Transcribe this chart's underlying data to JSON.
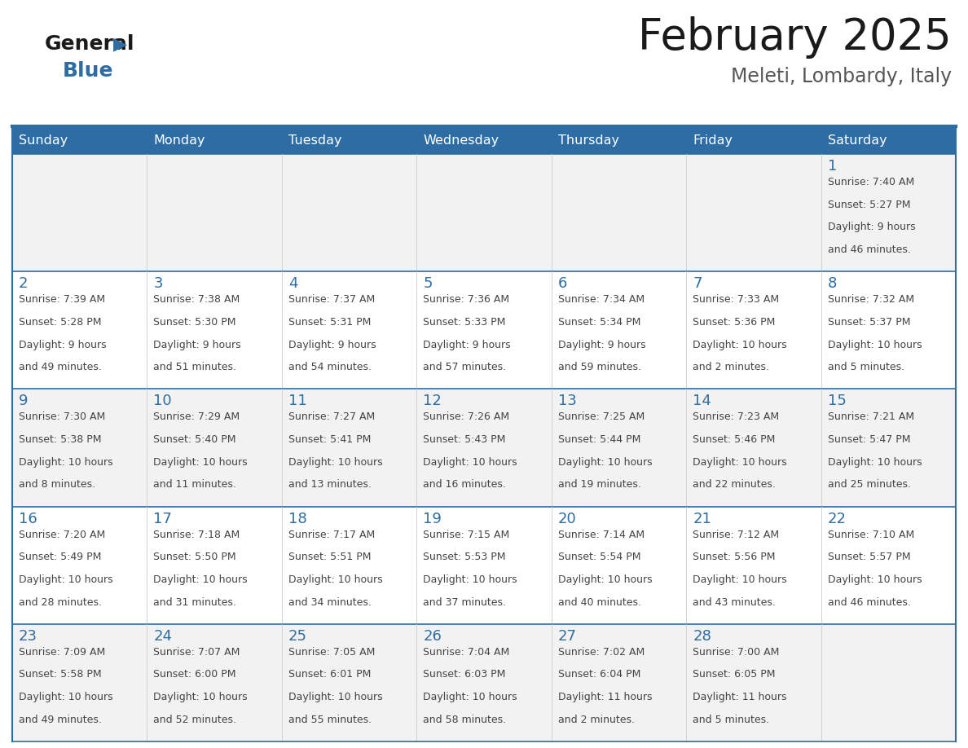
{
  "title": "February 2025",
  "subtitle": "Meleti, Lombardy, Italy",
  "header_bg": "#2E6DA4",
  "header_text_color": "#FFFFFF",
  "cell_bg_odd": "#F2F2F2",
  "cell_bg_even": "#FFFFFF",
  "day_number_color": "#2E6DA4",
  "text_color": "#444444",
  "border_color": "#AAAAAA",
  "days_of_week": [
    "Sunday",
    "Monday",
    "Tuesday",
    "Wednesday",
    "Thursday",
    "Friday",
    "Saturday"
  ],
  "calendar_data": [
    [
      null,
      null,
      null,
      null,
      null,
      null,
      {
        "day": "1",
        "sunrise": "7:40 AM",
        "sunset": "5:27 PM",
        "daylight": "9 hours",
        "daylight2": "and 46 minutes."
      }
    ],
    [
      {
        "day": "2",
        "sunrise": "7:39 AM",
        "sunset": "5:28 PM",
        "daylight": "9 hours",
        "daylight2": "and 49 minutes."
      },
      {
        "day": "3",
        "sunrise": "7:38 AM",
        "sunset": "5:30 PM",
        "daylight": "9 hours",
        "daylight2": "and 51 minutes."
      },
      {
        "day": "4",
        "sunrise": "7:37 AM",
        "sunset": "5:31 PM",
        "daylight": "9 hours",
        "daylight2": "and 54 minutes."
      },
      {
        "day": "5",
        "sunrise": "7:36 AM",
        "sunset": "5:33 PM",
        "daylight": "9 hours",
        "daylight2": "and 57 minutes."
      },
      {
        "day": "6",
        "sunrise": "7:34 AM",
        "sunset": "5:34 PM",
        "daylight": "9 hours",
        "daylight2": "and 59 minutes."
      },
      {
        "day": "7",
        "sunrise": "7:33 AM",
        "sunset": "5:36 PM",
        "daylight": "10 hours",
        "daylight2": "and 2 minutes."
      },
      {
        "day": "8",
        "sunrise": "7:32 AM",
        "sunset": "5:37 PM",
        "daylight": "10 hours",
        "daylight2": "and 5 minutes."
      }
    ],
    [
      {
        "day": "9",
        "sunrise": "7:30 AM",
        "sunset": "5:38 PM",
        "daylight": "10 hours",
        "daylight2": "and 8 minutes."
      },
      {
        "day": "10",
        "sunrise": "7:29 AM",
        "sunset": "5:40 PM",
        "daylight": "10 hours",
        "daylight2": "and 11 minutes."
      },
      {
        "day": "11",
        "sunrise": "7:27 AM",
        "sunset": "5:41 PM",
        "daylight": "10 hours",
        "daylight2": "and 13 minutes."
      },
      {
        "day": "12",
        "sunrise": "7:26 AM",
        "sunset": "5:43 PM",
        "daylight": "10 hours",
        "daylight2": "and 16 minutes."
      },
      {
        "day": "13",
        "sunrise": "7:25 AM",
        "sunset": "5:44 PM",
        "daylight": "10 hours",
        "daylight2": "and 19 minutes."
      },
      {
        "day": "14",
        "sunrise": "7:23 AM",
        "sunset": "5:46 PM",
        "daylight": "10 hours",
        "daylight2": "and 22 minutes."
      },
      {
        "day": "15",
        "sunrise": "7:21 AM",
        "sunset": "5:47 PM",
        "daylight": "10 hours",
        "daylight2": "and 25 minutes."
      }
    ],
    [
      {
        "day": "16",
        "sunrise": "7:20 AM",
        "sunset": "5:49 PM",
        "daylight": "10 hours",
        "daylight2": "and 28 minutes."
      },
      {
        "day": "17",
        "sunrise": "7:18 AM",
        "sunset": "5:50 PM",
        "daylight": "10 hours",
        "daylight2": "and 31 minutes."
      },
      {
        "day": "18",
        "sunrise": "7:17 AM",
        "sunset": "5:51 PM",
        "daylight": "10 hours",
        "daylight2": "and 34 minutes."
      },
      {
        "day": "19",
        "sunrise": "7:15 AM",
        "sunset": "5:53 PM",
        "daylight": "10 hours",
        "daylight2": "and 37 minutes."
      },
      {
        "day": "20",
        "sunrise": "7:14 AM",
        "sunset": "5:54 PM",
        "daylight": "10 hours",
        "daylight2": "and 40 minutes."
      },
      {
        "day": "21",
        "sunrise": "7:12 AM",
        "sunset": "5:56 PM",
        "daylight": "10 hours",
        "daylight2": "and 43 minutes."
      },
      {
        "day": "22",
        "sunrise": "7:10 AM",
        "sunset": "5:57 PM",
        "daylight": "10 hours",
        "daylight2": "and 46 minutes."
      }
    ],
    [
      {
        "day": "23",
        "sunrise": "7:09 AM",
        "sunset": "5:58 PM",
        "daylight": "10 hours",
        "daylight2": "and 49 minutes."
      },
      {
        "day": "24",
        "sunrise": "7:07 AM",
        "sunset": "6:00 PM",
        "daylight": "10 hours",
        "daylight2": "and 52 minutes."
      },
      {
        "day": "25",
        "sunrise": "7:05 AM",
        "sunset": "6:01 PM",
        "daylight": "10 hours",
        "daylight2": "and 55 minutes."
      },
      {
        "day": "26",
        "sunrise": "7:04 AM",
        "sunset": "6:03 PM",
        "daylight": "10 hours",
        "daylight2": "and 58 minutes."
      },
      {
        "day": "27",
        "sunrise": "7:02 AM",
        "sunset": "6:04 PM",
        "daylight": "11 hours",
        "daylight2": "and 2 minutes."
      },
      {
        "day": "28",
        "sunrise": "7:00 AM",
        "sunset": "6:05 PM",
        "daylight": "11 hours",
        "daylight2": "and 5 minutes."
      },
      null
    ]
  ]
}
